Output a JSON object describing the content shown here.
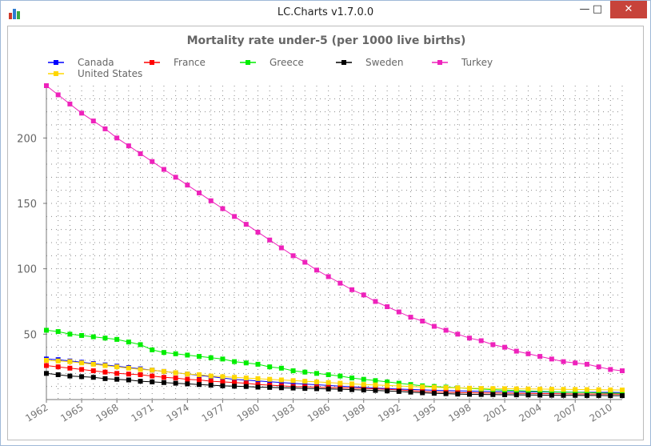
{
  "window": {
    "title": "LC.Charts v1.7.0.0",
    "minimize_icon": "minimize-icon",
    "maximize_icon": "maximize-icon",
    "close_icon": "close-icon",
    "app_icon": "bar-chart-icon"
  },
  "chart_data": {
    "type": "line",
    "title": "Mortality rate under-5 (per 1000 live births)",
    "xlabel": "",
    "ylabel": "",
    "xlim": [
      1962,
      2011
    ],
    "ylim": [
      0,
      240
    ],
    "y_ticks": [
      50,
      100,
      150,
      200
    ],
    "x_ticks": [
      "1962",
      "1965",
      "1968",
      "1971",
      "1974",
      "1977",
      "1980",
      "1983",
      "1986",
      "1989",
      "1992",
      "1995",
      "1998",
      "2001",
      "2004",
      "2007",
      "2010"
    ],
    "grid": true,
    "legend_position": "top",
    "x": [
      1962,
      1963,
      1964,
      1965,
      1966,
      1967,
      1968,
      1969,
      1970,
      1971,
      1972,
      1973,
      1974,
      1975,
      1976,
      1977,
      1978,
      1979,
      1980,
      1981,
      1982,
      1983,
      1984,
      1985,
      1986,
      1987,
      1988,
      1989,
      1990,
      1991,
      1992,
      1993,
      1994,
      1995,
      1996,
      1997,
      1998,
      1999,
      2000,
      2001,
      2002,
      2003,
      2004,
      2005,
      2006,
      2007,
      2008,
      2009,
      2010,
      2011
    ],
    "series": [
      {
        "name": "Canada",
        "color": "#0000ff",
        "values": [
          31,
          30.5,
          29.5,
          28.5,
          27.5,
          26.5,
          25.5,
          24.5,
          23.5,
          22.5,
          21.5,
          20.5,
          19.5,
          18.5,
          17.5,
          16.5,
          15.5,
          14.8,
          14.2,
          13.6,
          13,
          12.4,
          11.8,
          11.3,
          10.8,
          10.3,
          9.8,
          9.3,
          8.8,
          8.4,
          8.0,
          7.7,
          7.4,
          7.1,
          6.9,
          6.7,
          6.5,
          6.3,
          6.2,
          6.1,
          6.0,
          5.9,
          5.8,
          5.7,
          5.7,
          5.6,
          5.6,
          5.5,
          5.5,
          5.4
        ]
      },
      {
        "name": "France",
        "color": "#ff0000",
        "values": [
          26,
          25,
          24,
          23,
          22,
          21,
          20,
          19.5,
          19,
          18,
          17,
          16.5,
          15.5,
          15,
          14,
          13.5,
          13,
          12.5,
          11.5,
          11,
          10.5,
          10,
          9.8,
          9.5,
          9.2,
          9,
          8.7,
          8.5,
          8.2,
          7.8,
          7.4,
          6.8,
          6.3,
          5.8,
          5.6,
          5.4,
          5.2,
          5.1,
          5.0,
          4.9,
          4.8,
          4.7,
          4.6,
          4.5,
          4.4,
          4.3,
          4.3,
          4.2,
          4.2,
          4.1
        ]
      },
      {
        "name": "Greece",
        "color": "#00ee00",
        "values": [
          53,
          52,
          50,
          49,
          48,
          47,
          46,
          44,
          42,
          38,
          36,
          35,
          34,
          33,
          32,
          31,
          29,
          28,
          27,
          25,
          24,
          22,
          21,
          20,
          19,
          18,
          16.5,
          15.5,
          14.5,
          13.5,
          12.5,
          11.5,
          10.5,
          10,
          9.5,
          9,
          8.5,
          8,
          7.6,
          7.2,
          6.9,
          6.6,
          6.3,
          6.0,
          5.7,
          5.5,
          5.3,
          5.1,
          4.9,
          4.7
        ]
      },
      {
        "name": "Sweden",
        "color": "#000000",
        "values": [
          20,
          19,
          18,
          17.5,
          17,
          16,
          15.5,
          15,
          14,
          13.5,
          13,
          12.5,
          12,
          11.5,
          11,
          10.5,
          10.2,
          10,
          9.5,
          9.3,
          9,
          8.8,
          8.5,
          8.3,
          8.1,
          7.9,
          7.6,
          7.3,
          7.0,
          6.6,
          6.2,
          5.7,
          5.2,
          4.8,
          4.5,
          4.2,
          4.0,
          3.9,
          3.8,
          3.7,
          3.6,
          3.5,
          3.4,
          3.3,
          3.2,
          3.2,
          3.1,
          3.1,
          3.0,
          3.0
        ]
      },
      {
        "name": "Turkey",
        "color": "#ee22bb",
        "values": [
          240,
          233,
          226,
          219,
          213,
          207,
          200,
          194,
          188,
          182,
          176,
          170,
          164,
          158,
          152,
          146,
          140,
          134,
          128,
          122,
          116,
          110,
          105,
          99,
          94,
          89,
          84,
          80,
          75,
          71,
          67,
          63,
          60,
          56,
          53,
          50,
          47,
          45,
          42,
          40,
          37,
          35,
          33,
          31,
          29,
          28,
          27,
          25,
          23,
          22
        ]
      },
      {
        "name": "United States",
        "color": "#ffd700",
        "values": [
          30,
          29.5,
          29,
          28,
          27,
          26,
          25,
          24,
          23,
          22.5,
          21.5,
          20.5,
          19.5,
          19,
          18,
          17.5,
          17,
          16.5,
          16,
          15.5,
          15,
          14.5,
          14,
          13.5,
          13,
          12.5,
          12,
          11.5,
          11.2,
          10.8,
          10.4,
          10,
          9.7,
          9.4,
          9.1,
          8.9,
          8.7,
          8.5,
          8.4,
          8.3,
          8.2,
          8.1,
          8.0,
          7.9,
          7.8,
          7.7,
          7.6,
          7.5,
          7.4,
          7.3
        ]
      }
    ]
  }
}
